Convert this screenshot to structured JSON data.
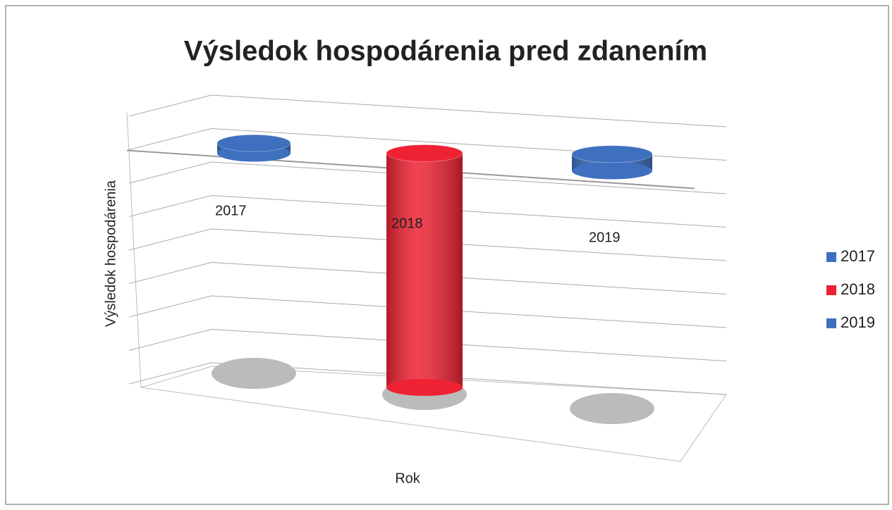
{
  "chart_data": {
    "type": "cylinder",
    "title": "Výsledok hospodárenia pred zdanením",
    "y_label": "Výsledok hospodárenia",
    "x_label": "Rok",
    "categories": [
      "2017",
      "2018",
      "2019"
    ],
    "values": [
      0.3,
      -7,
      0.5
    ],
    "colors": [
      "#3f6fbf",
      "#ee2233",
      "#3f6fbf"
    ],
    "ylim": [
      -7,
      1
    ],
    "yticks": [
      -7,
      -6,
      -5,
      -4,
      -3,
      -2,
      -1,
      0,
      1
    ],
    "grid": true,
    "legend": "right"
  }
}
